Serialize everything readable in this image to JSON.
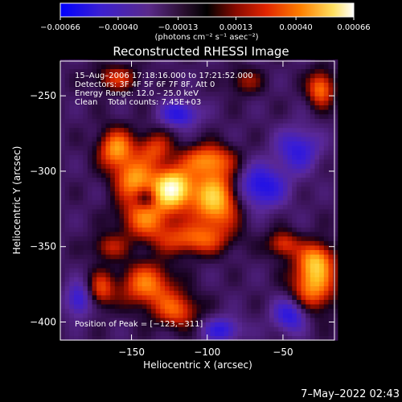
{
  "chart_data": {
    "type": "heatmap",
    "title": "Reconstructed RHESSI Image",
    "xlabel": "Heliocentric X (arcsec)",
    "ylabel": "Heliocentric Y (arcsec)",
    "xlim": [
      -197,
      -16
    ],
    "ylim": [
      -412,
      -227
    ],
    "x_ticks": [
      -150,
      -100,
      -50
    ],
    "x_tick_labels": [
      "−150",
      "−100",
      "−50"
    ],
    "y_ticks": [
      -250,
      -300,
      -350,
      -400
    ],
    "y_tick_labels": [
      "−250",
      "−300",
      "−350",
      "−400"
    ],
    "colorbar": {
      "range": [
        -0.00066,
        0.00066
      ],
      "ticks": [
        -0.00066,
        -0.0004,
        -0.00013,
        0.00013,
        0.0004,
        0.00066
      ],
      "tick_labels": [
        "−0.00066",
        "−0.00040",
        "−0.00013",
        "0.00013",
        "0.00040",
        "0.00066"
      ],
      "unit_label": "(photons cm⁻² s⁻¹ asec⁻²)",
      "colors": [
        "#0000ff",
        "#5028b4",
        "#281030",
        "#000000",
        "#c81400",
        "#ff7800",
        "#ffff96",
        "#ffffff"
      ]
    },
    "annotations": [
      "15–Aug–2006 17:18:16.000 to 17:21:52.000",
      "Detectors: 3F 4F 5F 6F 7F 8F, Att 0",
      "Energy Range: 12.0 – 25.0 keV",
      "Clean    Total counts: 7.45E+03"
    ],
    "peak_text": "Position of Peak = [−123,−311]",
    "peak": [
      -123,
      -311
    ],
    "sources": [
      {
        "x": -123,
        "y": -311,
        "amp": 1.0,
        "sx": 9,
        "sy": 9
      },
      {
        "x": -95,
        "y": -318,
        "amp": 0.78,
        "sx": 11,
        "sy": 14
      },
      {
        "x": -148,
        "y": -305,
        "amp": 0.6,
        "sx": 9,
        "sy": 9
      },
      {
        "x": -160,
        "y": -285,
        "amp": 0.62,
        "sx": 8,
        "sy": 9
      },
      {
        "x": -140,
        "y": -330,
        "amp": 0.55,
        "sx": 12,
        "sy": 10
      },
      {
        "x": -110,
        "y": -345,
        "amp": 0.45,
        "sx": 16,
        "sy": 7
      },
      {
        "x": -100,
        "y": -292,
        "amp": 0.5,
        "sx": 12,
        "sy": 7
      },
      {
        "x": -135,
        "y": -285,
        "amp": 0.4,
        "sx": 8,
        "sy": 8
      },
      {
        "x": -140,
        "y": -375,
        "amp": 0.55,
        "sx": 12,
        "sy": 10
      },
      {
        "x": -120,
        "y": -392,
        "amp": 0.45,
        "sx": 10,
        "sy": 8
      },
      {
        "x": -170,
        "y": -378,
        "amp": 0.4,
        "sx": 6,
        "sy": 8
      },
      {
        "x": -30,
        "y": -375,
        "amp": 0.62,
        "sx": 10,
        "sy": 12
      },
      {
        "x": -28,
        "y": -358,
        "amp": 0.5,
        "sx": 8,
        "sy": 8
      },
      {
        "x": -50,
        "y": -348,
        "amp": 0.4,
        "sx": 7,
        "sy": 6
      },
      {
        "x": -25,
        "y": -245,
        "amp": 0.55,
        "sx": 6,
        "sy": 8
      },
      {
        "x": -160,
        "y": -238,
        "amp": 0.35,
        "sx": 10,
        "sy": 6
      },
      {
        "x": -75,
        "y": -240,
        "amp": 0.25,
        "sx": 8,
        "sy": 6
      },
      {
        "x": -165,
        "y": -350,
        "amp": 0.3,
        "sx": 8,
        "sy": 6
      }
    ],
    "negatives": [
      {
        "x": -118,
        "y": -262,
        "amp": 0.45,
        "sx": 9,
        "sy": 6
      },
      {
        "x": -65,
        "y": -310,
        "amp": 0.5,
        "sx": 12,
        "sy": 10
      },
      {
        "x": -45,
        "y": -395,
        "amp": 0.45,
        "sx": 8,
        "sy": 8
      },
      {
        "x": -90,
        "y": -405,
        "amp": 0.4,
        "sx": 9,
        "sy": 6
      },
      {
        "x": -185,
        "y": -385,
        "amp": 0.4,
        "sx": 6,
        "sy": 8
      },
      {
        "x": -40,
        "y": -285,
        "amp": 0.4,
        "sx": 10,
        "sy": 10
      },
      {
        "x": -140,
        "y": -318,
        "amp": 0.3,
        "sx": 5,
        "sy": 5
      }
    ]
  },
  "timestamp": "7–May–2022 02:43"
}
